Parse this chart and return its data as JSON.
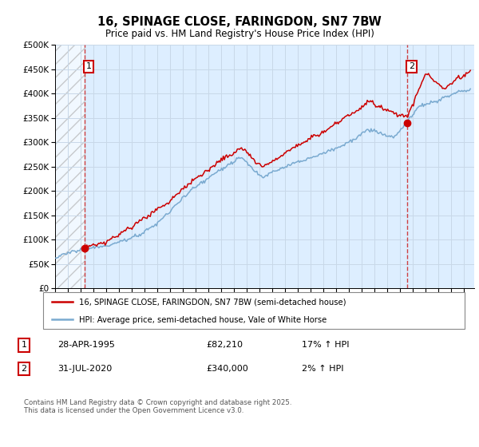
{
  "title": "16, SPINAGE CLOSE, FARINGDON, SN7 7BW",
  "subtitle": "Price paid vs. HM Land Registry's House Price Index (HPI)",
  "legend_line1": "16, SPINAGE CLOSE, FARINGDON, SN7 7BW (semi-detached house)",
  "legend_line2": "HPI: Average price, semi-detached house, Vale of White Horse",
  "annotation1": {
    "label": "1",
    "date_str": "28-APR-1995",
    "price": 82210,
    "hpi_pct": "17% ↑ HPI",
    "x_year": 1995.32
  },
  "annotation2": {
    "label": "2",
    "date_str": "31-JUL-2020",
    "price": 340000,
    "hpi_pct": "2% ↑ HPI",
    "x_year": 2020.58
  },
  "footnote": "Contains HM Land Registry data © Crown copyright and database right 2025.\nThis data is licensed under the Open Government Licence v3.0.",
  "ylim": [
    0,
    500000
  ],
  "xlim_start": 1993.0,
  "xlim_end": 2025.8,
  "price_paid_color": "#cc0000",
  "hpi_color": "#7aaad0",
  "grid_color": "#c8d8e8",
  "background_color": "#ffffff",
  "plot_bg_color": "#ddeeff"
}
